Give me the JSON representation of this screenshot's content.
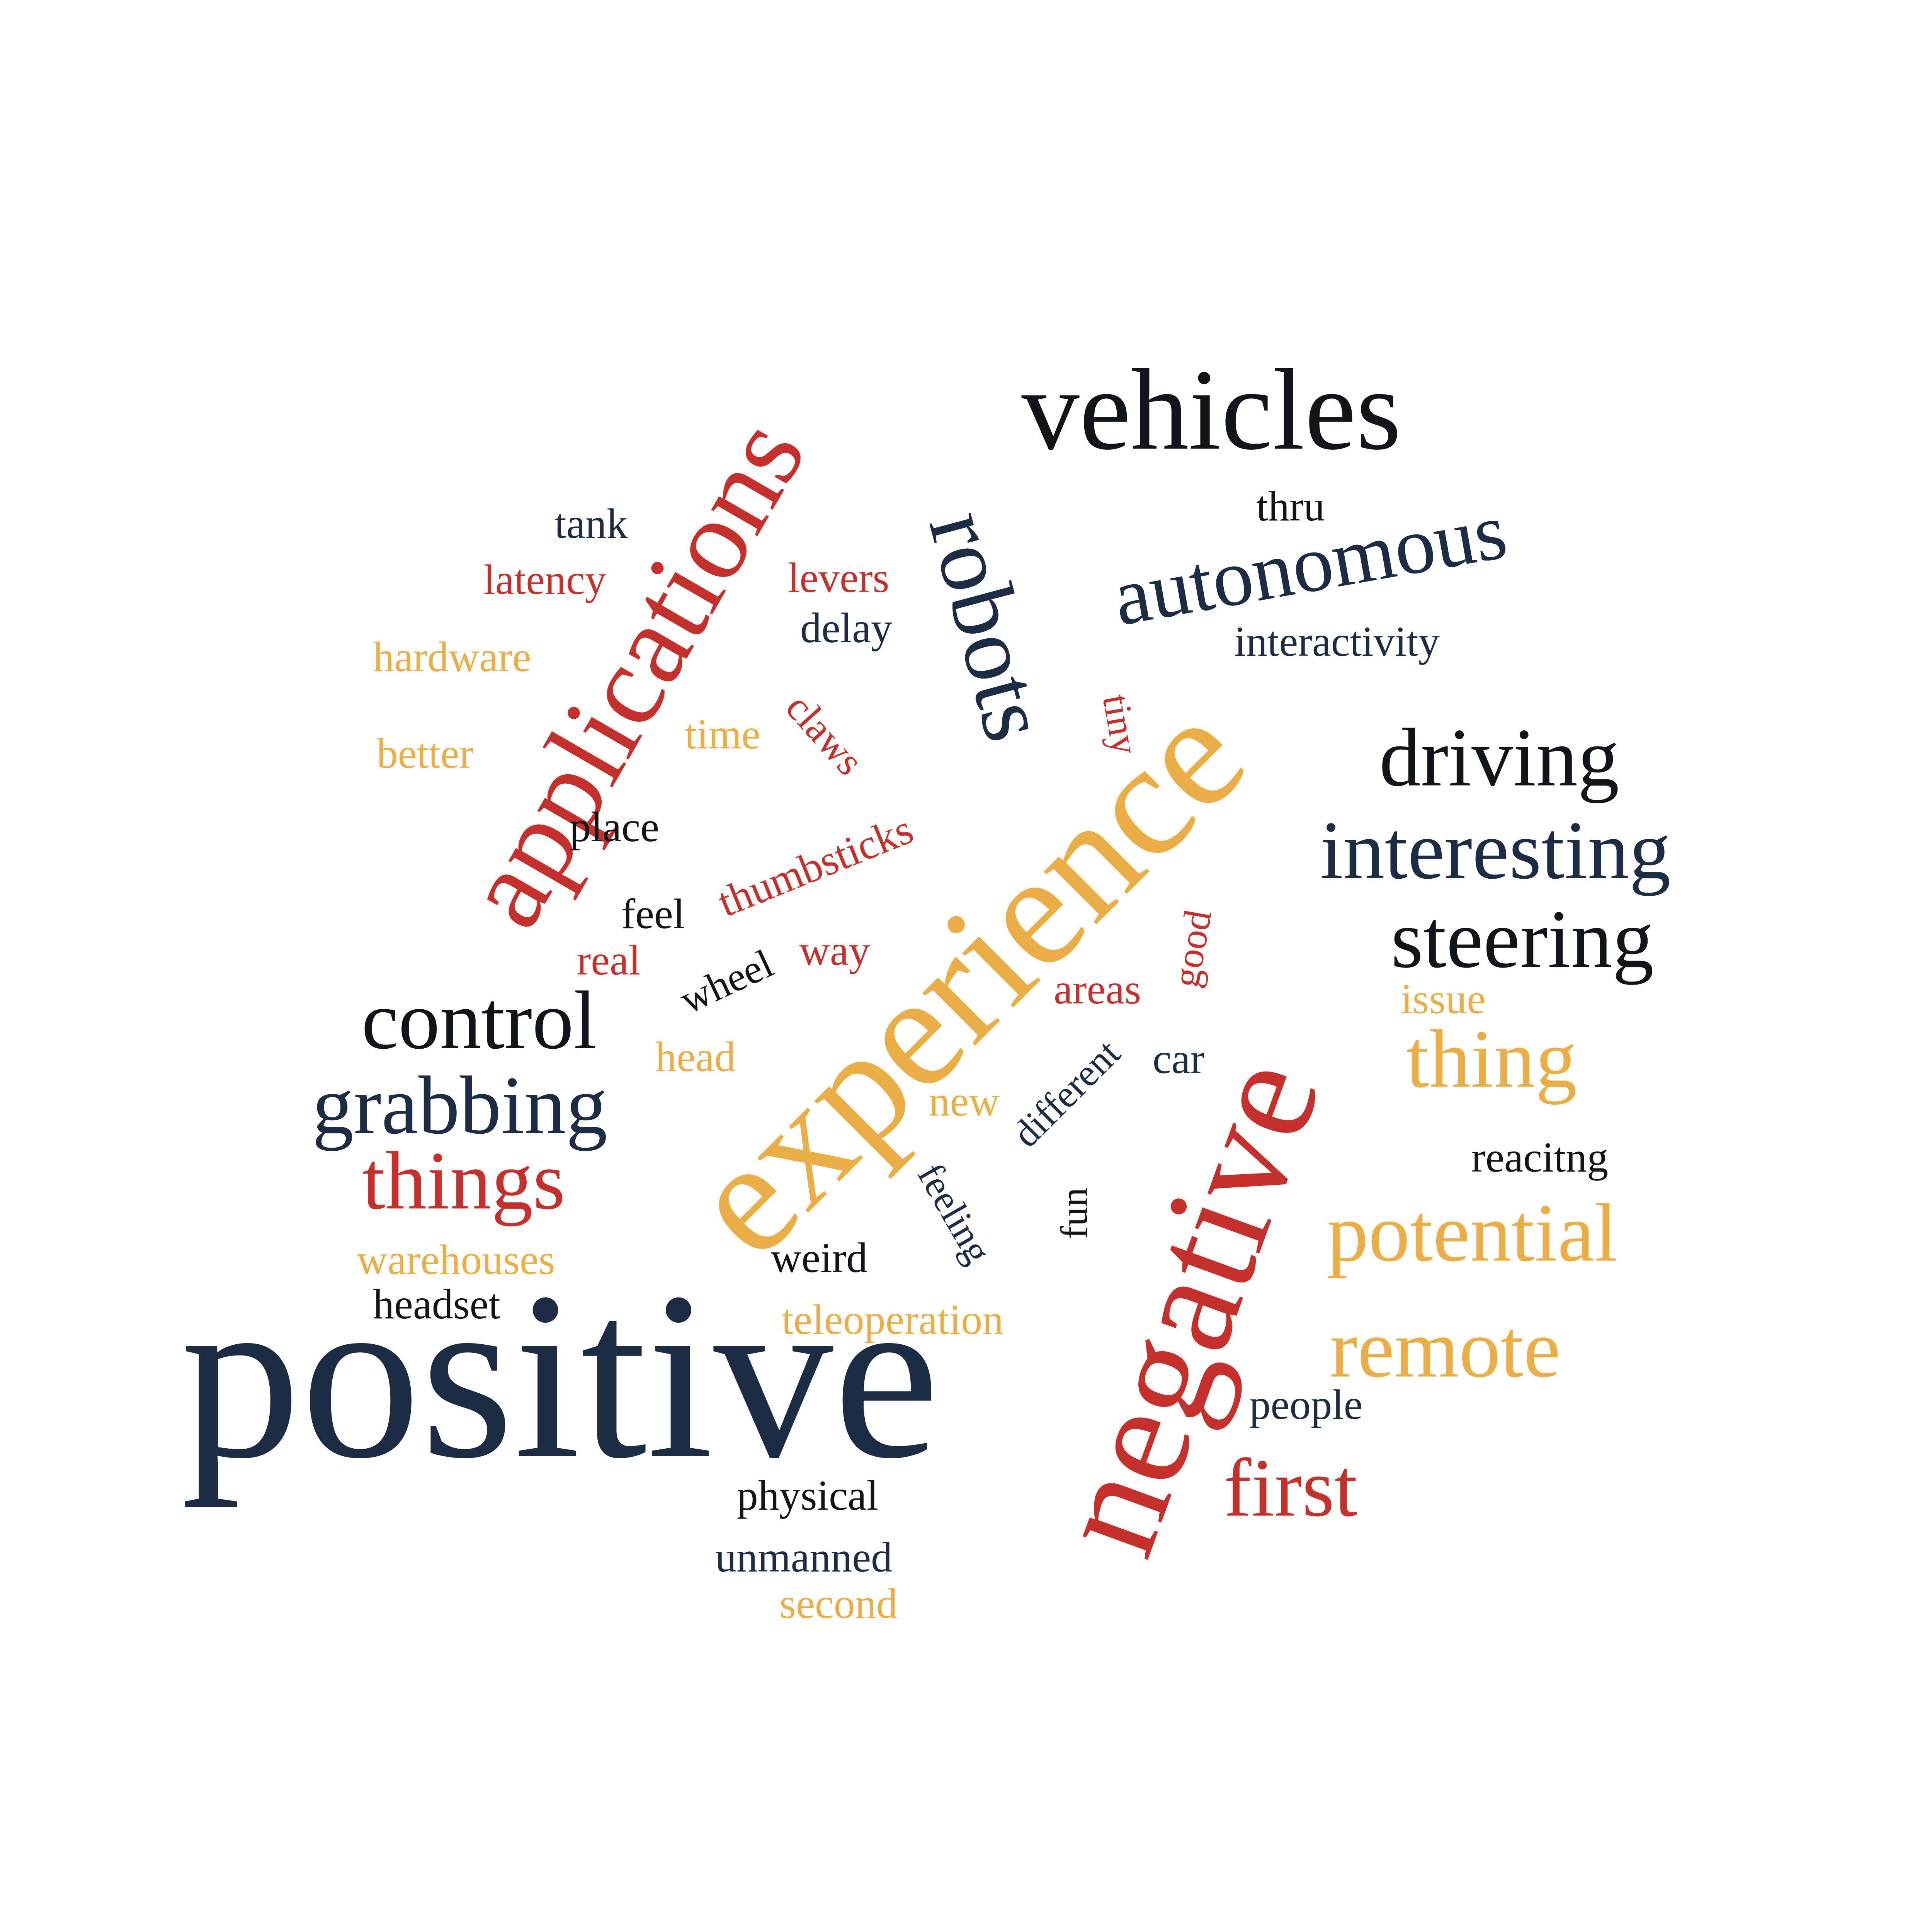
{
  "palette": {
    "navy": "#1b2c44",
    "red": "#c6302c",
    "gold": "#ebae47",
    "black": "#111419",
    "background": "#ffffff"
  },
  "words": {
    "positive": "positive",
    "experience": "experience",
    "negative": "negative",
    "applications": "applications",
    "vehicles": "vehicles",
    "robots": "robots",
    "autonomous": "autonomous",
    "driving": "driving",
    "interesting": "interesting",
    "steering": "steering",
    "thing": "thing",
    "potential": "potential",
    "remote": "remote",
    "first": "first",
    "control": "control",
    "grabbing": "grabbing",
    "things": "things",
    "tank": "tank",
    "latency": "latency",
    "levers": "levers",
    "delay": "delay",
    "hardware": "hardware",
    "claws": "claws",
    "time": "time",
    "better": "better",
    "tiny": "tiny",
    "thru": "thru",
    "interactivity": "interactivity",
    "place": "place",
    "thumbsticks": "thumbsticks",
    "feel": "feel",
    "real": "real",
    "way": "way",
    "wheel": "wheel",
    "good": "good",
    "areas": "areas",
    "issue": "issue",
    "head": "head",
    "car": "car",
    "different": "different",
    "new": "new",
    "reacitng": "reacitng",
    "feeling": "feeling",
    "fun": "fun",
    "warehouses": "warehouses",
    "weird": "weird",
    "headset": "headset",
    "teleoperation": "teleoperation",
    "people": "people",
    "physical": "physical",
    "unmanned": "unmanned",
    "second": "second"
  }
}
